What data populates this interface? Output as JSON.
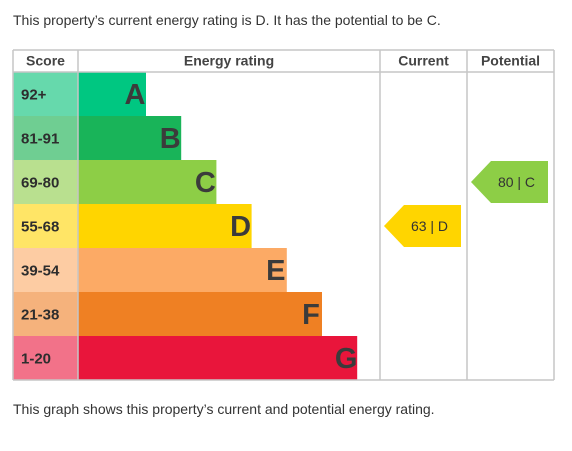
{
  "intro_text": "This property’s current energy rating is D. It has the potential to be C.",
  "caption_text": "This graph shows this property’s current and potential energy rating.",
  "chart_data": {
    "type": "bar",
    "headers": {
      "score": "Score",
      "rating": "Energy rating",
      "current": "Current",
      "potential": "Potential"
    },
    "bands": [
      {
        "letter": "A",
        "range": "92+",
        "color": "#00c781",
        "score_bg": "#66d9ac"
      },
      {
        "letter": "B",
        "range": "81-91",
        "color": "#19b459",
        "score_bg": "#6fce92"
      },
      {
        "letter": "C",
        "range": "69-80",
        "color": "#8dce46",
        "score_bg": "#b9e08f"
      },
      {
        "letter": "D",
        "range": "55-68",
        "color": "#ffd500",
        "score_bg": "#ffe566"
      },
      {
        "letter": "E",
        "range": "39-54",
        "color": "#fcaa65",
        "score_bg": "#fdcca3"
      },
      {
        "letter": "F",
        "range": "21-38",
        "color": "#ef8023",
        "score_bg": "#f5b27c"
      },
      {
        "letter": "G",
        "range": "1-20",
        "color": "#e9153b",
        "score_bg": "#f27289"
      }
    ],
    "current": {
      "value": 63,
      "band": "D",
      "label": "63 | D",
      "color": "#ffd500"
    },
    "potential": {
      "value": 80,
      "band": "C",
      "label": "80 | C",
      "color": "#8dce46"
    }
  }
}
